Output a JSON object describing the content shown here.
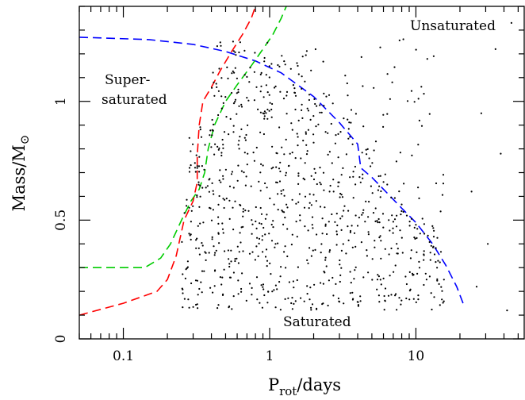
{
  "chart_data": {
    "type": "scatter",
    "x_axis": {
      "label_main": "P",
      "label_sub": "rot",
      "label_rest": "/days",
      "scale": "log",
      "range": [
        0.05,
        55
      ],
      "tick_values": [
        0.1,
        1,
        10
      ],
      "tick_labels": [
        "0.1",
        "1",
        "10"
      ]
    },
    "y_axis": {
      "label_main": "Mass/M",
      "label_sub": "⊙",
      "scale": "linear",
      "range": [
        0,
        1.4
      ],
      "tick_values": [
        0,
        0.5,
        1
      ],
      "tick_labels": [
        "0",
        "0.5",
        "1"
      ]
    },
    "region_labels": {
      "unsaturated": "Unsaturated",
      "supersaturated_line1": "Super-",
      "supersaturated_line2": "saturated",
      "saturated": "Saturated"
    },
    "points": {
      "color": "#000000",
      "count": 900,
      "seed": 1234,
      "note_mass_range": [
        0.12,
        1.27
      ],
      "note_period_range": [
        0.2,
        45
      ]
    },
    "curves": [
      {
        "color": "#0000ff",
        "style": "dashed",
        "points": [
          [
            0.05,
            1.27
          ],
          [
            0.15,
            1.26
          ],
          [
            0.3,
            1.24
          ],
          [
            0.5,
            1.21
          ],
          [
            0.8,
            1.17
          ],
          [
            1.2,
            1.12
          ],
          [
            2.0,
            1.02
          ],
          [
            3.0,
            0.91
          ],
          [
            4.0,
            0.82
          ],
          [
            4.2,
            0.72
          ],
          [
            5.0,
            0.68
          ],
          [
            6.0,
            0.63
          ],
          [
            8.0,
            0.55
          ],
          [
            10.0,
            0.49
          ],
          [
            13.0,
            0.4
          ],
          [
            16.0,
            0.31
          ],
          [
            19.0,
            0.22
          ],
          [
            21.0,
            0.15
          ]
        ]
      },
      {
        "color": "#00cc00",
        "style": "dashed",
        "points": [
          [
            0.05,
            0.3
          ],
          [
            0.14,
            0.3
          ],
          [
            0.18,
            0.34
          ],
          [
            0.21,
            0.4
          ],
          [
            0.25,
            0.5
          ],
          [
            0.29,
            0.58
          ],
          [
            0.33,
            0.63
          ],
          [
            0.36,
            0.7
          ],
          [
            0.38,
            0.8
          ],
          [
            0.42,
            0.9
          ],
          [
            0.5,
            1.0
          ],
          [
            0.6,
            1.07
          ],
          [
            0.75,
            1.15
          ],
          [
            0.9,
            1.22
          ],
          [
            1.05,
            1.28
          ],
          [
            1.2,
            1.35
          ],
          [
            1.3,
            1.4
          ]
        ]
      },
      {
        "color": "#ff0000",
        "style": "dashed",
        "points": [
          [
            0.05,
            0.1
          ],
          [
            0.1,
            0.15
          ],
          [
            0.17,
            0.2
          ],
          [
            0.2,
            0.25
          ],
          [
            0.23,
            0.35
          ],
          [
            0.26,
            0.5
          ],
          [
            0.3,
            0.58
          ],
          [
            0.32,
            0.66
          ],
          [
            0.32,
            0.77
          ],
          [
            0.33,
            0.9
          ],
          [
            0.35,
            1.0
          ],
          [
            0.4,
            1.06
          ],
          [
            0.46,
            1.13
          ],
          [
            0.55,
            1.21
          ],
          [
            0.65,
            1.28
          ],
          [
            0.75,
            1.35
          ],
          [
            0.8,
            1.4
          ]
        ]
      }
    ]
  }
}
